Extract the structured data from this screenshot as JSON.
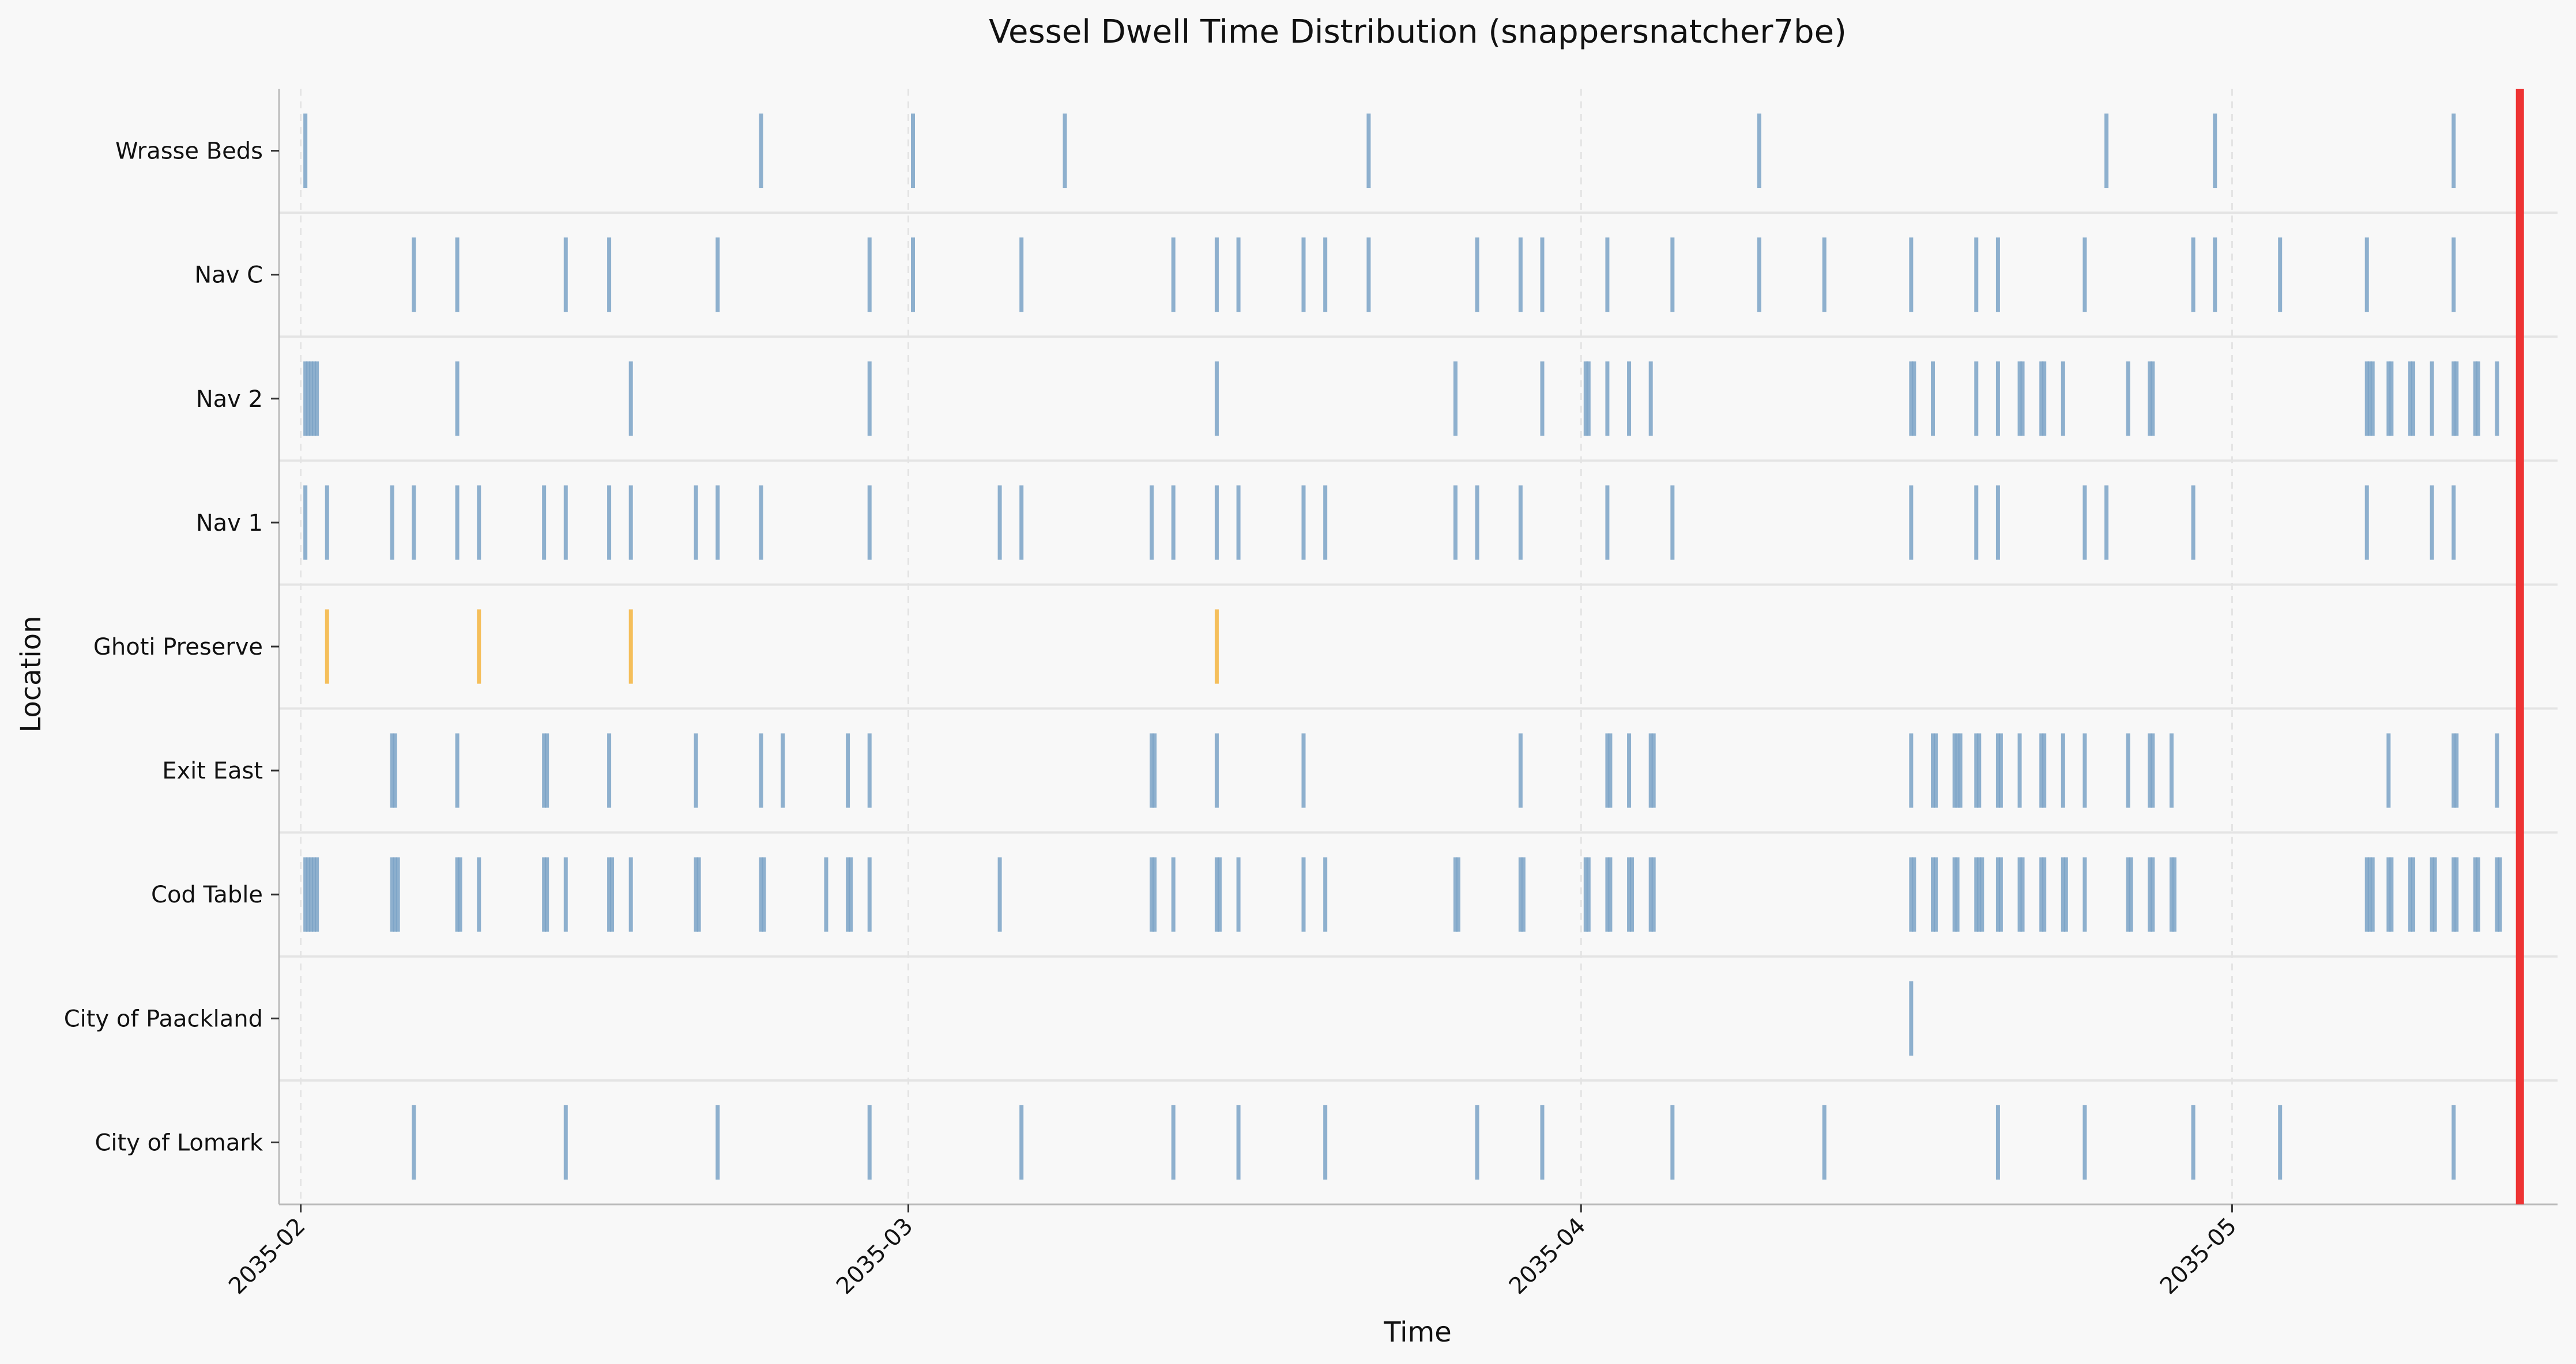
{
  "chart_data": {
    "type": "event-strip",
    "title": "Vessel Dwell Time Distribution (snappersnatcher7be)",
    "xlabel": "Time",
    "ylabel": "Location",
    "x_ticks": [
      "2035-02",
      "2035-03",
      "2035-04",
      "2035-05"
    ],
    "x_tick_dates": [
      "2035-02-01",
      "2035-03-01",
      "2035-04-01",
      "2035-05-01"
    ],
    "xlim": [
      "2035-01-31",
      "2035-05-16"
    ],
    "marker_line": {
      "date": "2035-05-14",
      "color": "#ee3333"
    },
    "colors": {
      "default": "#7ba3c7",
      "highlight": "#f5b540",
      "grid": "#e4e4e4"
    },
    "grid": {
      "x": true,
      "y_separators": true
    },
    "categories": [
      "Wrasse Beds",
      "Nav C",
      "Nav 2",
      "Nav 1",
      "Ghoti Preserve",
      "Exit East",
      "Cod Table",
      "City of Paackland",
      "City of Lomark"
    ],
    "series": [
      {
        "category": "Wrasse Beds",
        "color": "#7ba3c7",
        "dates": [
          "2035-02-01",
          "2035-02-22",
          "2035-03-01",
          "2035-03-08",
          "2035-03-22",
          "2035-04-09",
          "2035-04-25",
          "2035-04-30",
          "2035-05-11"
        ]
      },
      {
        "category": "Nav C",
        "color": "#7ba3c7",
        "dates": [
          "2035-02-06",
          "2035-02-08",
          "2035-02-13",
          "2035-02-15",
          "2035-02-20",
          "2035-02-27",
          "2035-03-01",
          "2035-03-06",
          "2035-03-13",
          "2035-03-15",
          "2035-03-16",
          "2035-03-19",
          "2035-03-20",
          "2035-03-22",
          "2035-03-27",
          "2035-03-29",
          "2035-03-30",
          "2035-04-02",
          "2035-04-05",
          "2035-04-09",
          "2035-04-12",
          "2035-04-16",
          "2035-04-19",
          "2035-04-20",
          "2035-04-24",
          "2035-04-29",
          "2035-04-30",
          "2035-05-03",
          "2035-05-07",
          "2035-05-11",
          "2035-05-14"
        ]
      },
      {
        "category": "Nav 2",
        "color": "#7ba3c7",
        "dates": [
          "2035-02-01",
          "2035-02-01",
          "2035-02-01",
          "2035-02-01",
          "2035-02-01",
          "2035-02-08",
          "2035-02-16",
          "2035-02-27",
          "2035-03-15",
          "2035-03-26",
          "2035-03-30",
          "2035-04-01",
          "2035-04-01",
          "2035-04-02",
          "2035-04-03",
          "2035-04-04",
          "2035-04-16",
          "2035-04-16",
          "2035-04-17",
          "2035-04-19",
          "2035-04-20",
          "2035-04-21",
          "2035-04-21",
          "2035-04-22",
          "2035-04-22",
          "2035-04-23",
          "2035-04-26",
          "2035-04-27",
          "2035-04-27",
          "2035-05-07",
          "2035-05-07",
          "2035-05-07",
          "2035-05-08",
          "2035-05-08",
          "2035-05-09",
          "2035-05-09",
          "2035-05-10",
          "2035-05-11",
          "2035-05-11",
          "2035-05-12",
          "2035-05-12",
          "2035-05-13",
          "2035-05-14"
        ]
      },
      {
        "category": "Nav 1",
        "color": "#7ba3c7",
        "dates": [
          "2035-02-01",
          "2035-02-02",
          "2035-02-05",
          "2035-02-06",
          "2035-02-08",
          "2035-02-09",
          "2035-02-12",
          "2035-02-13",
          "2035-02-15",
          "2035-02-16",
          "2035-02-19",
          "2035-02-20",
          "2035-02-22",
          "2035-02-27",
          "2035-03-05",
          "2035-03-06",
          "2035-03-12",
          "2035-03-13",
          "2035-03-15",
          "2035-03-16",
          "2035-03-19",
          "2035-03-20",
          "2035-03-26",
          "2035-03-27",
          "2035-03-29",
          "2035-04-02",
          "2035-04-05",
          "2035-04-16",
          "2035-04-19",
          "2035-04-20",
          "2035-04-24",
          "2035-04-25",
          "2035-04-29",
          "2035-05-07",
          "2035-05-10",
          "2035-05-11",
          "2035-05-14"
        ]
      },
      {
        "category": "Ghoti Preserve",
        "color": "#f5b540",
        "dates": [
          "2035-02-02",
          "2035-02-09",
          "2035-02-16",
          "2035-03-15"
        ]
      },
      {
        "category": "Exit East",
        "color": "#7ba3c7",
        "dates": [
          "2035-02-05",
          "2035-02-05",
          "2035-02-08",
          "2035-02-12",
          "2035-02-12",
          "2035-02-15",
          "2035-02-19",
          "2035-02-22",
          "2035-02-23",
          "2035-02-26",
          "2035-02-27",
          "2035-03-12",
          "2035-03-12",
          "2035-03-15",
          "2035-03-19",
          "2035-03-29",
          "2035-04-02",
          "2035-04-02",
          "2035-04-03",
          "2035-04-04",
          "2035-04-04",
          "2035-04-16",
          "2035-04-17",
          "2035-04-17",
          "2035-04-18",
          "2035-04-18",
          "2035-04-18",
          "2035-04-19",
          "2035-04-19",
          "2035-04-20",
          "2035-04-20",
          "2035-04-21",
          "2035-04-22",
          "2035-04-22",
          "2035-04-23",
          "2035-04-24",
          "2035-04-26",
          "2035-04-27",
          "2035-04-27",
          "2035-04-28",
          "2035-05-08",
          "2035-05-11",
          "2035-05-11",
          "2035-05-13",
          "2035-05-14"
        ]
      },
      {
        "category": "Cod Table",
        "color": "#7ba3c7",
        "dates": [
          "2035-02-01",
          "2035-02-01",
          "2035-02-01",
          "2035-02-01",
          "2035-02-01",
          "2035-02-05",
          "2035-02-05",
          "2035-02-05",
          "2035-02-08",
          "2035-02-08",
          "2035-02-09",
          "2035-02-12",
          "2035-02-12",
          "2035-02-13",
          "2035-02-15",
          "2035-02-15",
          "2035-02-16",
          "2035-02-19",
          "2035-02-19",
          "2035-02-22",
          "2035-02-22",
          "2035-02-25",
          "2035-02-26",
          "2035-02-26",
          "2035-02-27",
          "2035-03-05",
          "2035-03-12",
          "2035-03-12",
          "2035-03-13",
          "2035-03-15",
          "2035-03-15",
          "2035-03-16",
          "2035-03-19",
          "2035-03-20",
          "2035-03-26",
          "2035-03-26",
          "2035-03-29",
          "2035-03-29",
          "2035-04-01",
          "2035-04-01",
          "2035-04-02",
          "2035-04-02",
          "2035-04-03",
          "2035-04-03",
          "2035-04-04",
          "2035-04-04",
          "2035-04-16",
          "2035-04-16",
          "2035-04-17",
          "2035-04-17",
          "2035-04-18",
          "2035-04-18",
          "2035-04-19",
          "2035-04-19",
          "2035-04-19",
          "2035-04-20",
          "2035-04-20",
          "2035-04-21",
          "2035-04-21",
          "2035-04-22",
          "2035-04-22",
          "2035-04-23",
          "2035-04-23",
          "2035-04-24",
          "2035-04-26",
          "2035-04-26",
          "2035-04-27",
          "2035-04-27",
          "2035-04-28",
          "2035-04-28",
          "2035-05-07",
          "2035-05-07",
          "2035-05-07",
          "2035-05-08",
          "2035-05-08",
          "2035-05-09",
          "2035-05-09",
          "2035-05-10",
          "2035-05-10",
          "2035-05-11",
          "2035-05-11",
          "2035-05-12",
          "2035-05-12",
          "2035-05-13",
          "2035-05-13",
          "2035-05-14"
        ]
      },
      {
        "category": "City of Paackland",
        "color": "#7ba3c7",
        "dates": [
          "2035-04-16"
        ]
      },
      {
        "category": "City of Lomark",
        "color": "#7ba3c7",
        "dates": [
          "2035-02-06",
          "2035-02-13",
          "2035-02-20",
          "2035-02-27",
          "2035-03-06",
          "2035-03-13",
          "2035-03-16",
          "2035-03-20",
          "2035-03-27",
          "2035-03-30",
          "2035-04-05",
          "2035-04-12",
          "2035-04-20",
          "2035-04-24",
          "2035-04-29",
          "2035-05-03",
          "2035-05-11",
          "2035-05-14"
        ]
      }
    ]
  }
}
